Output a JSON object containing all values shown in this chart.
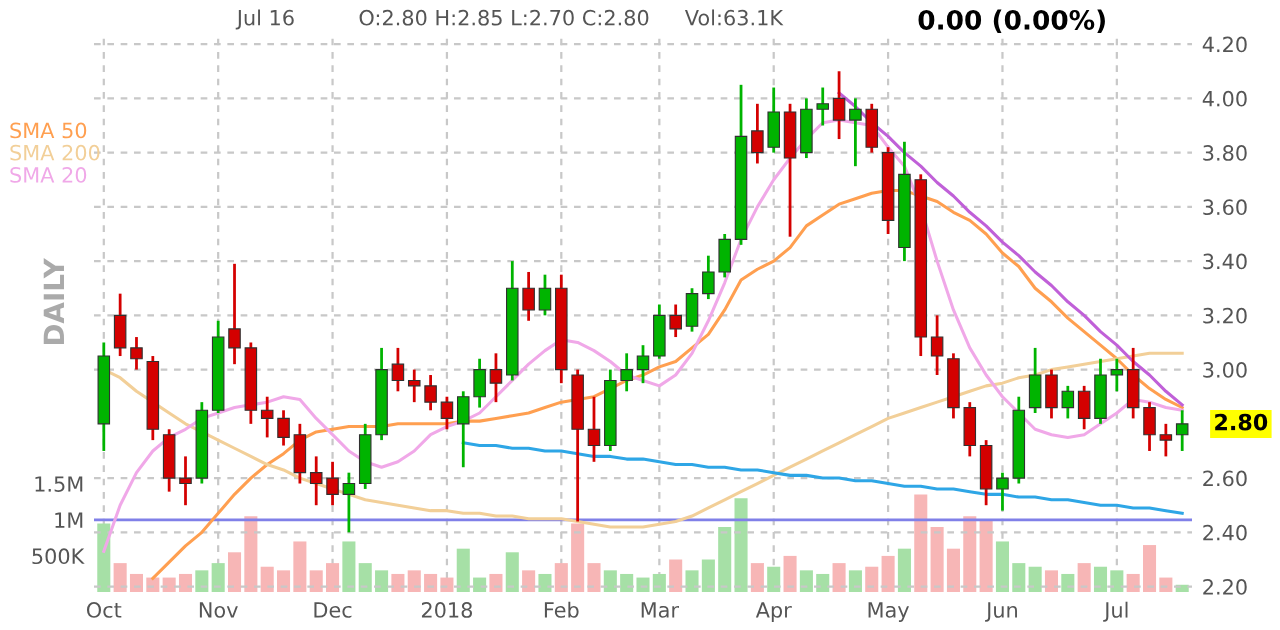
{
  "chart_data": {
    "type": "candlestick",
    "categories": [
      "Oct",
      null,
      null,
      null,
      null,
      null,
      null,
      "Nov",
      null,
      null,
      null,
      null,
      null,
      null,
      "Dec",
      null,
      null,
      null,
      null,
      null,
      null,
      "2018",
      null,
      null,
      null,
      null,
      null,
      null,
      "Feb",
      null,
      null,
      null,
      null,
      null,
      "Mar",
      null,
      null,
      null,
      null,
      null,
      null,
      "Apr",
      null,
      null,
      null,
      null,
      null,
      null,
      "May",
      null,
      null,
      null,
      null,
      null,
      null,
      "Jun",
      null,
      null,
      null,
      null,
      null,
      null,
      "Jul",
      null,
      null,
      null,
      null
    ],
    "ohlc": [
      [
        2.8,
        3.1,
        2.7,
        3.05
      ],
      [
        3.2,
        3.28,
        3.05,
        3.08
      ],
      [
        3.08,
        3.12,
        3.0,
        3.04
      ],
      [
        3.03,
        3.05,
        2.74,
        2.78
      ],
      [
        2.76,
        2.78,
        2.55,
        2.6
      ],
      [
        2.6,
        2.68,
        2.5,
        2.58
      ],
      [
        2.6,
        2.88,
        2.58,
        2.85
      ],
      [
        2.85,
        3.18,
        2.84,
        3.12
      ],
      [
        3.15,
        3.39,
        3.02,
        3.08
      ],
      [
        3.08,
        3.1,
        2.8,
        2.85
      ],
      [
        2.85,
        2.9,
        2.75,
        2.82
      ],
      [
        2.82,
        2.85,
        2.72,
        2.75
      ],
      [
        2.76,
        2.8,
        2.58,
        2.62
      ],
      [
        2.62,
        2.68,
        2.5,
        2.58
      ],
      [
        2.6,
        2.66,
        2.5,
        2.54
      ],
      [
        2.54,
        2.62,
        2.4,
        2.58
      ],
      [
        2.58,
        2.8,
        2.56,
        2.76
      ],
      [
        2.76,
        3.08,
        2.74,
        3.0
      ],
      [
        3.02,
        3.08,
        2.92,
        2.96
      ],
      [
        2.96,
        3.0,
        2.88,
        2.94
      ],
      [
        2.94,
        2.98,
        2.85,
        2.88
      ],
      [
        2.88,
        2.9,
        2.78,
        2.82
      ],
      [
        2.8,
        2.92,
        2.64,
        2.9
      ],
      [
        2.9,
        3.04,
        2.86,
        3.0
      ],
      [
        3.0,
        3.06,
        2.88,
        2.95
      ],
      [
        2.98,
        3.4,
        2.96,
        3.3
      ],
      [
        3.3,
        3.36,
        3.18,
        3.22
      ],
      [
        3.22,
        3.35,
        3.2,
        3.3
      ],
      [
        3.3,
        3.35,
        2.95,
        3.0
      ],
      [
        2.98,
        3.0,
        2.44,
        2.78
      ],
      [
        2.78,
        2.9,
        2.66,
        2.72
      ],
      [
        2.72,
        3.0,
        2.7,
        2.96
      ],
      [
        2.96,
        3.06,
        2.92,
        3.0
      ],
      [
        3.0,
        3.09,
        2.95,
        3.05
      ],
      [
        3.05,
        3.24,
        3.04,
        3.2
      ],
      [
        3.2,
        3.24,
        3.12,
        3.15
      ],
      [
        3.16,
        3.3,
        3.14,
        3.28
      ],
      [
        3.28,
        3.42,
        3.26,
        3.36
      ],
      [
        3.36,
        3.5,
        3.34,
        3.48
      ],
      [
        3.48,
        4.05,
        3.46,
        3.86
      ],
      [
        3.88,
        3.98,
        3.76,
        3.8
      ],
      [
        3.82,
        4.04,
        3.8,
        3.95
      ],
      [
        3.95,
        3.98,
        3.49,
        3.78
      ],
      [
        3.8,
        4.0,
        3.78,
        3.96
      ],
      [
        3.96,
        4.04,
        3.9,
        3.98
      ],
      [
        4.0,
        4.1,
        3.85,
        3.92
      ],
      [
        3.92,
        4.0,
        3.75,
        3.96
      ],
      [
        3.96,
        3.98,
        3.8,
        3.82
      ],
      [
        3.8,
        3.82,
        3.5,
        3.55
      ],
      [
        3.45,
        3.84,
        3.4,
        3.72
      ],
      [
        3.7,
        3.72,
        3.05,
        3.12
      ],
      [
        3.12,
        3.2,
        2.98,
        3.05
      ],
      [
        3.04,
        3.06,
        2.82,
        2.86
      ],
      [
        2.86,
        2.88,
        2.68,
        2.72
      ],
      [
        2.72,
        2.74,
        2.5,
        2.56
      ],
      [
        2.56,
        2.62,
        2.48,
        2.6
      ],
      [
        2.6,
        2.9,
        2.58,
        2.85
      ],
      [
        2.86,
        3.08,
        2.84,
        2.98
      ],
      [
        2.98,
        3.0,
        2.82,
        2.86
      ],
      [
        2.86,
        2.94,
        2.82,
        2.92
      ],
      [
        2.92,
        2.94,
        2.78,
        2.82
      ],
      [
        2.82,
        3.04,
        2.8,
        2.98
      ],
      [
        2.98,
        3.04,
        2.92,
        3.0
      ],
      [
        3.0,
        3.08,
        2.82,
        2.86
      ],
      [
        2.86,
        2.88,
        2.7,
        2.76
      ],
      [
        2.76,
        2.8,
        2.68,
        2.74
      ],
      [
        2.76,
        2.85,
        2.7,
        2.8
      ]
    ],
    "colors": [
      "#00b400",
      "#d40000",
      "#d40000",
      "#d40000",
      "#d40000",
      "#d40000",
      "#00b400",
      "#00b400",
      "#d40000",
      "#d40000",
      "#d40000",
      "#d40000",
      "#d40000",
      "#d40000",
      "#d40000",
      "#00b400",
      "#00b400",
      "#00b400",
      "#d40000",
      "#d40000",
      "#d40000",
      "#d40000",
      "#00b400",
      "#00b400",
      "#d40000",
      "#00b400",
      "#d40000",
      "#00b400",
      "#d40000",
      "#d40000",
      "#d40000",
      "#00b400",
      "#00b400",
      "#00b400",
      "#00b400",
      "#d40000",
      "#00b400",
      "#00b400",
      "#00b400",
      "#00b400",
      "#d40000",
      "#00b400",
      "#d40000",
      "#00b400",
      "#00b400",
      "#d40000",
      "#00b400",
      "#d40000",
      "#d40000",
      "#00b400",
      "#d40000",
      "#d40000",
      "#d40000",
      "#d40000",
      "#d40000",
      "#00b400",
      "#00b400",
      "#00b400",
      "#d40000",
      "#00b400",
      "#d40000",
      "#00b400",
      "#00b400",
      "#d40000",
      "#d40000",
      "#d40000",
      "#00b400"
    ],
    "series": [
      {
        "type": "bar",
        "axis": "y2",
        "values": [
          950000,
          400000,
          250000,
          200000,
          200000,
          250000,
          300000,
          400000,
          550000,
          1050000,
          350000,
          300000,
          700000,
          300000,
          400000,
          700000,
          400000,
          300000,
          250000,
          300000,
          250000,
          200000,
          600000,
          200000,
          250000,
          550000,
          300000,
          250000,
          400000,
          950000,
          400000,
          300000,
          250000,
          200000,
          250000,
          450000,
          300000,
          450000,
          900000,
          1300000,
          400000,
          350000,
          500000,
          300000,
          250000,
          400000,
          300000,
          350000,
          500000,
          600000,
          1350000,
          900000,
          600000,
          1050000,
          1000000,
          700000,
          400000,
          350000,
          300000,
          250000,
          400000,
          350000,
          300000,
          250000,
          650000,
          200000,
          100000
        ],
        "colors": [
          "#a6e0a6",
          "#f7b6b6",
          "#f7b6b6",
          "#f7b6b6",
          "#f7b6b6",
          "#f7b6b6",
          "#a6e0a6",
          "#a6e0a6",
          "#f7b6b6",
          "#f7b6b6",
          "#f7b6b6",
          "#f7b6b6",
          "#f7b6b6",
          "#f7b6b6",
          "#f7b6b6",
          "#a6e0a6",
          "#a6e0a6",
          "#a6e0a6",
          "#f7b6b6",
          "#f7b6b6",
          "#f7b6b6",
          "#f7b6b6",
          "#a6e0a6",
          "#a6e0a6",
          "#f7b6b6",
          "#a6e0a6",
          "#f7b6b6",
          "#a6e0a6",
          "#f7b6b6",
          "#f7b6b6",
          "#f7b6b6",
          "#a6e0a6",
          "#a6e0a6",
          "#a6e0a6",
          "#a6e0a6",
          "#f7b6b6",
          "#a6e0a6",
          "#a6e0a6",
          "#a6e0a6",
          "#a6e0a6",
          "#f7b6b6",
          "#a6e0a6",
          "#f7b6b6",
          "#a6e0a6",
          "#a6e0a6",
          "#f7b6b6",
          "#a6e0a6",
          "#f7b6b6",
          "#f7b6b6",
          "#a6e0a6",
          "#f7b6b6",
          "#f7b6b6",
          "#f7b6b6",
          "#f7b6b6",
          "#f7b6b6",
          "#a6e0a6",
          "#a6e0a6",
          "#a6e0a6",
          "#f7b6b6",
          "#a6e0a6",
          "#f7b6b6",
          "#a6e0a6",
          "#a6e0a6",
          "#f7b6b6",
          "#f7b6b6",
          "#f7b6b6",
          "#a6e0a6"
        ]
      },
      {
        "type": "line",
        "name": "SMA 50",
        "color": "#ff9f50",
        "values": [
          null,
          null,
          null,
          2.23,
          2.29,
          2.35,
          2.4,
          2.47,
          2.54,
          2.6,
          2.65,
          2.69,
          2.74,
          2.77,
          2.78,
          2.79,
          2.79,
          2.79,
          2.8,
          2.8,
          2.8,
          2.8,
          2.81,
          2.81,
          2.82,
          2.83,
          2.84,
          2.86,
          2.88,
          2.89,
          2.9,
          2.93,
          2.96,
          2.98,
          3.01,
          3.03,
          3.08,
          3.13,
          3.22,
          3.33,
          3.37,
          3.4,
          3.45,
          3.53,
          3.57,
          3.61,
          3.63,
          3.65,
          3.66,
          3.66,
          3.64,
          3.62,
          3.58,
          3.55,
          3.5,
          3.43,
          3.38,
          3.3,
          3.25,
          3.19,
          3.14,
          3.09,
          3.04,
          2.98,
          2.93,
          2.89,
          2.86
        ]
      },
      {
        "type": "line",
        "name": "SMA 200",
        "color": "#f2cf98",
        "values": [
          3.0,
          2.97,
          2.92,
          2.88,
          2.84,
          2.8,
          2.77,
          2.74,
          2.71,
          2.68,
          2.65,
          2.63,
          2.6,
          2.58,
          2.56,
          2.54,
          2.52,
          2.51,
          2.5,
          2.49,
          2.48,
          2.48,
          2.47,
          2.47,
          2.46,
          2.46,
          2.45,
          2.45,
          2.45,
          2.44,
          2.43,
          2.42,
          2.42,
          2.42,
          2.43,
          2.44,
          2.46,
          2.49,
          2.52,
          2.55,
          2.58,
          2.61,
          2.64,
          2.67,
          2.7,
          2.73,
          2.76,
          2.79,
          2.82,
          2.84,
          2.86,
          2.88,
          2.9,
          2.92,
          2.94,
          2.95,
          2.97,
          2.98,
          3.0,
          3.01,
          3.02,
          3.03,
          3.04,
          3.05,
          3.06,
          3.06,
          3.06
        ]
      },
      {
        "type": "line",
        "name": "SMA 20",
        "color": "#f0a8e8",
        "values": [
          2.33,
          2.5,
          2.62,
          2.7,
          2.75,
          2.78,
          2.82,
          2.84,
          2.86,
          2.87,
          2.88,
          2.9,
          2.89,
          2.82,
          2.76,
          2.7,
          2.66,
          2.64,
          2.66,
          2.7,
          2.76,
          2.79,
          2.81,
          2.84,
          2.9,
          2.96,
          3.02,
          3.07,
          3.11,
          3.1,
          3.07,
          3.03,
          2.98,
          2.96,
          2.94,
          2.98,
          3.06,
          3.18,
          3.32,
          3.48,
          3.6,
          3.7,
          3.78,
          3.85,
          3.91,
          3.92,
          3.91,
          3.9,
          3.82,
          3.75,
          3.6,
          3.4,
          3.22,
          3.08,
          2.98,
          2.9,
          2.84,
          2.78,
          2.76,
          2.75,
          2.76,
          2.8,
          2.84,
          2.89,
          2.88,
          2.86,
          2.85
        ]
      },
      {
        "type": "line",
        "color": "#2ea6e6",
        "values": [
          null,
          null,
          null,
          null,
          null,
          null,
          null,
          null,
          null,
          null,
          null,
          null,
          null,
          null,
          null,
          null,
          null,
          null,
          null,
          null,
          null,
          null,
          2.73,
          2.72,
          2.72,
          2.71,
          2.71,
          2.7,
          2.7,
          2.69,
          2.68,
          2.68,
          2.67,
          2.67,
          2.66,
          2.65,
          2.65,
          2.64,
          2.64,
          2.63,
          2.63,
          2.62,
          2.61,
          2.61,
          2.6,
          2.6,
          2.59,
          2.59,
          2.58,
          2.57,
          2.57,
          2.56,
          2.56,
          2.55,
          2.54,
          2.54,
          2.53,
          2.53,
          2.52,
          2.52,
          2.51,
          2.5,
          2.5,
          2.49,
          2.49,
          2.48,
          2.47
        ]
      },
      {
        "type": "line",
        "color": "#c060d8",
        "values": [
          null,
          null,
          null,
          null,
          null,
          null,
          null,
          null,
          null,
          null,
          null,
          null,
          null,
          null,
          null,
          null,
          null,
          null,
          null,
          null,
          null,
          null,
          null,
          null,
          null,
          null,
          null,
          null,
          null,
          null,
          null,
          null,
          null,
          null,
          null,
          null,
          null,
          null,
          null,
          null,
          null,
          null,
          null,
          null,
          null,
          4.02,
          3.97,
          3.91,
          3.86,
          3.8,
          3.75,
          3.69,
          3.64,
          3.58,
          3.53,
          3.47,
          3.42,
          3.36,
          3.31,
          3.25,
          3.2,
          3.14,
          3.09,
          3.03,
          2.98,
          2.92,
          2.87
        ]
      }
    ],
    "ylim": [
      2.18,
      4.23
    ],
    "yticks": [
      {
        "value": 2.2,
        "label": "2.20"
      },
      {
        "value": 2.4,
        "label": "2.40"
      },
      {
        "value": 2.6,
        "label": "2.60"
      },
      {
        "value": 3.0,
        "label": "3.00"
      },
      {
        "value": 3.2,
        "label": "3.20"
      },
      {
        "value": 3.4,
        "label": "3.40"
      },
      {
        "value": 3.6,
        "label": "3.60"
      },
      {
        "value": 3.8,
        "label": "3.80"
      },
      {
        "value": 4.0,
        "label": "4.00"
      },
      {
        "value": 4.2,
        "label": "4.20"
      }
    ],
    "y2lim": [
      0,
      7700000
    ],
    "y2ticks": [
      {
        "value": 500000,
        "label": "500K"
      },
      {
        "value": 1000000,
        "label": "1M"
      },
      {
        "value": 1500000,
        "label": "1.5M"
      }
    ],
    "ref_lines": [
      {
        "axis": "y2",
        "value": 1000000,
        "color": "#8080e8"
      }
    ],
    "annotations": [
      "Jul 16",
      "O:2.80 H:2.85 L:2.70 C:2.80",
      "Vol:63.1K",
      "0.00 (0.00%)",
      "DAILY",
      "2.80"
    ],
    "grid": true,
    "legend": "top left"
  }
}
